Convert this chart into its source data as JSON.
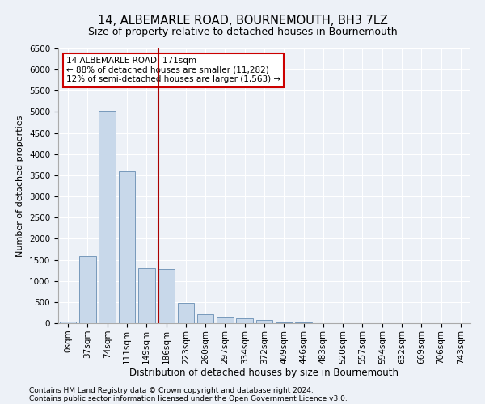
{
  "title": "14, ALBEMARLE ROAD, BOURNEMOUTH, BH3 7LZ",
  "subtitle": "Size of property relative to detached houses in Bournemouth",
  "xlabel": "Distribution of detached houses by size in Bournemouth",
  "ylabel": "Number of detached properties",
  "footer_line1": "Contains HM Land Registry data © Crown copyright and database right 2024.",
  "footer_line2": "Contains public sector information licensed under the Open Government Licence v3.0.",
  "bar_labels": [
    "0sqm",
    "37sqm",
    "74sqm",
    "111sqm",
    "149sqm",
    "186sqm",
    "223sqm",
    "260sqm",
    "297sqm",
    "334sqm",
    "372sqm",
    "409sqm",
    "446sqm",
    "483sqm",
    "520sqm",
    "557sqm",
    "594sqm",
    "632sqm",
    "669sqm",
    "706sqm",
    "743sqm"
  ],
  "bar_values": [
    30,
    1580,
    5020,
    3600,
    1300,
    1280,
    480,
    210,
    155,
    120,
    75,
    25,
    15,
    5,
    0,
    0,
    0,
    0,
    0,
    0,
    0
  ],
  "bar_color": "#c8d8ea",
  "bar_edge_color": "#7799bb",
  "ylim": [
    0,
    6500
  ],
  "yticks": [
    0,
    500,
    1000,
    1500,
    2000,
    2500,
    3000,
    3500,
    4000,
    4500,
    5000,
    5500,
    6000,
    6500
  ],
  "property_line_x": 4.62,
  "property_line_color": "#aa0000",
  "annotation_text": "14 ALBEMARLE ROAD: 171sqm\n← 88% of detached houses are smaller (11,282)\n12% of semi-detached houses are larger (1,563) →",
  "annotation_box_facecolor": "#ffffff",
  "annotation_box_edgecolor": "#cc0000",
  "bg_color": "#edf1f7",
  "plot_bg_color": "#edf1f7",
  "grid_color": "#ffffff",
  "title_fontsize": 10.5,
  "subtitle_fontsize": 9,
  "xlabel_fontsize": 8.5,
  "ylabel_fontsize": 8,
  "tick_fontsize": 7.5,
  "annotation_fontsize": 7.5,
  "footer_fontsize": 6.5
}
